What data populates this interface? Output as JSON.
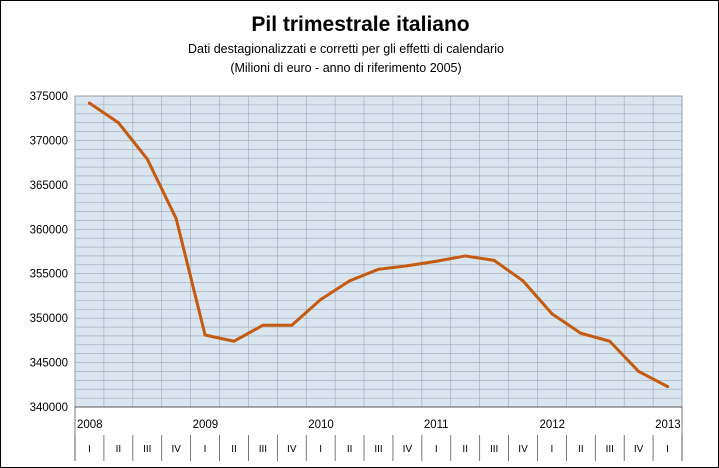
{
  "chart_data": {
    "type": "line",
    "title": "Pil trimestrale italiano",
    "subtitle": [
      "Dati destagionalizzati e corretti per gli effetti di calendario",
      "(Milioni di euro - anno di riferimento 2005)"
    ],
    "xlabel": "",
    "ylabel": "",
    "ylim": [
      340000,
      375000
    ],
    "yticks": [
      340000,
      345000,
      350000,
      355000,
      360000,
      365000,
      370000,
      375000
    ],
    "ytick_labels": [
      "340000",
      "345000",
      "350000",
      "355000",
      "360000",
      "365000",
      "370000",
      "375000"
    ],
    "years": [
      "2008",
      "2009",
      "2010",
      "2011",
      "2012",
      "2013"
    ],
    "quarter_labels": [
      "I",
      "II",
      "III",
      "IV",
      "I",
      "II",
      "III",
      "IV",
      "I",
      "II",
      "III",
      "IV",
      "I",
      "II",
      "III",
      "IV",
      "I",
      "II",
      "III",
      "IV",
      "I"
    ],
    "x": [
      "2008-I",
      "2008-II",
      "2008-III",
      "2008-IV",
      "2009-I",
      "2009-II",
      "2009-III",
      "2009-IV",
      "2010-I",
      "2010-II",
      "2010-III",
      "2010-IV",
      "2011-I",
      "2011-II",
      "2011-III",
      "2011-IV",
      "2012-I",
      "2012-II",
      "2012-III",
      "2012-IV",
      "2013-I"
    ],
    "values": [
      374200,
      372000,
      367900,
      361200,
      348100,
      347400,
      349200,
      349200,
      352100,
      354200,
      355500,
      355900,
      356400,
      357000,
      356500,
      354200,
      350500,
      348300,
      347400,
      344000,
      342300
    ],
    "series_color": "#C55A11",
    "grid": true,
    "legend": "none"
  },
  "colors": {
    "plot_background": "#D9E5EF",
    "gridline": "#9DA9B8"
  }
}
